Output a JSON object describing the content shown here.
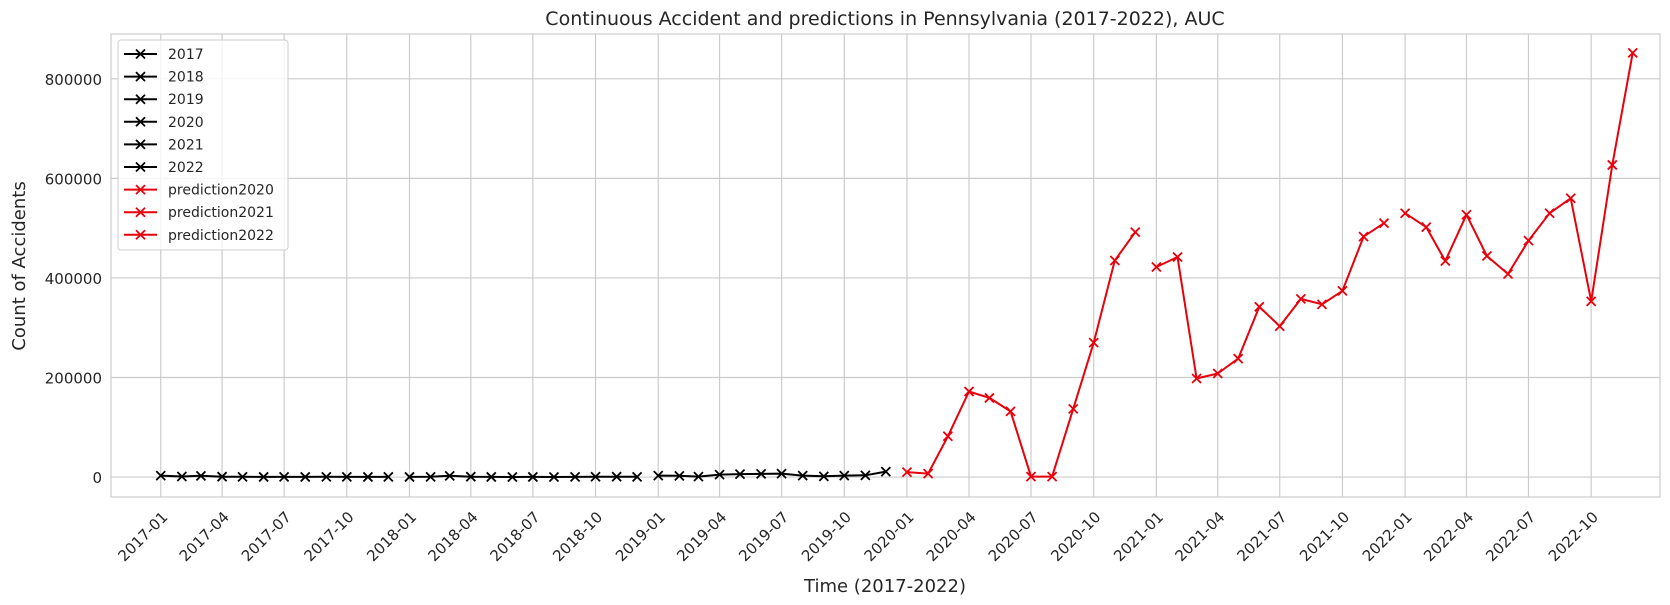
{
  "chart_data": {
    "type": "line",
    "title": "Continuous Accident and predictions in Pennsylvania (2017-2022), AUC",
    "xlabel": "Time (2017-2022)",
    "ylabel": "Count of Accidents",
    "ylim": [
      -40000,
      890000
    ],
    "yticks": [
      0,
      200000,
      400000,
      600000,
      800000
    ],
    "ytick_labels": [
      "0",
      "200000",
      "400000",
      "600000",
      "800000"
    ],
    "xticks": [
      "2017-01",
      "2017-04",
      "2017-07",
      "2017-10",
      "2018-01",
      "2018-04",
      "2018-07",
      "2018-10",
      "2019-01",
      "2019-04",
      "2019-07",
      "2019-10",
      "2020-01",
      "2020-04",
      "2020-07",
      "2020-10",
      "2021-01",
      "2021-04",
      "2021-07",
      "2021-10",
      "2022-01",
      "2022-04",
      "2022-07",
      "2022-10"
    ],
    "xlim": [
      "2016-10-20",
      "2023-01-10"
    ],
    "grid": true,
    "legend_position": "top-left",
    "colors": {
      "actual": "#000000",
      "prediction": "#e8000b"
    },
    "series": [
      {
        "name": "2017",
        "color": "#000000",
        "x": [
          "2017-01",
          "2017-02",
          "2017-03",
          "2017-04",
          "2017-05",
          "2017-06",
          "2017-07",
          "2017-08",
          "2017-09",
          "2017-10",
          "2017-11",
          "2017-12"
        ],
        "values": [
          3000,
          1200,
          2500,
          800,
          500,
          300,
          400,
          300,
          500,
          400,
          300,
          500
        ]
      },
      {
        "name": "2018",
        "color": "#000000",
        "x": [
          "2018-01",
          "2018-02",
          "2018-03",
          "2018-04",
          "2018-05",
          "2018-06",
          "2018-07",
          "2018-08",
          "2018-09",
          "2018-10",
          "2018-11",
          "2018-12"
        ],
        "values": [
          300,
          500,
          2500,
          800,
          300,
          200,
          300,
          200,
          400,
          600,
          800,
          500
        ]
      },
      {
        "name": "2019",
        "color": "#000000",
        "x": [
          "2019-01",
          "2019-02",
          "2019-03",
          "2019-04",
          "2019-05",
          "2019-06",
          "2019-07",
          "2019-08",
          "2019-09",
          "2019-10",
          "2019-11",
          "2019-12"
        ],
        "values": [
          3000,
          2500,
          1000,
          5000,
          6000,
          6500,
          7000,
          3000,
          1500,
          3000,
          3500,
          11000
        ]
      },
      {
        "name": "2020",
        "color": "#000000",
        "x": [],
        "values": []
      },
      {
        "name": "2021",
        "color": "#000000",
        "x": [],
        "values": []
      },
      {
        "name": "2022",
        "color": "#000000",
        "x": [],
        "values": []
      },
      {
        "name": "prediction2020",
        "color": "#e8000b",
        "x": [
          "2020-01",
          "2020-02",
          "2020-03",
          "2020-04",
          "2020-05",
          "2020-06",
          "2020-07",
          "2020-08",
          "2020-09",
          "2020-10",
          "2020-11",
          "2020-12"
        ],
        "values": [
          10000,
          7000,
          82000,
          172000,
          159000,
          132000,
          1000,
          1000,
          137000,
          270000,
          435000,
          492000
        ]
      },
      {
        "name": "prediction2021",
        "color": "#e8000b",
        "x": [
          "2021-01",
          "2021-02",
          "2021-03",
          "2021-04",
          "2021-05",
          "2021-06",
          "2021-07",
          "2021-08",
          "2021-09",
          "2021-10",
          "2021-11",
          "2021-12"
        ],
        "values": [
          422000,
          442000,
          198000,
          208000,
          238000,
          342000,
          303000,
          358000,
          347000,
          374000,
          483000,
          510000
        ]
      },
      {
        "name": "prediction2022",
        "color": "#e8000b",
        "x": [
          "2022-01",
          "2022-02",
          "2022-03",
          "2022-04",
          "2022-05",
          "2022-06",
          "2022-07",
          "2022-08",
          "2022-09",
          "2022-10",
          "2022-11",
          "2022-12"
        ],
        "values": [
          530000,
          502000,
          434000,
          527000,
          444000,
          408000,
          475000,
          530000,
          560000,
          353000,
          627000,
          852000
        ]
      }
    ]
  }
}
